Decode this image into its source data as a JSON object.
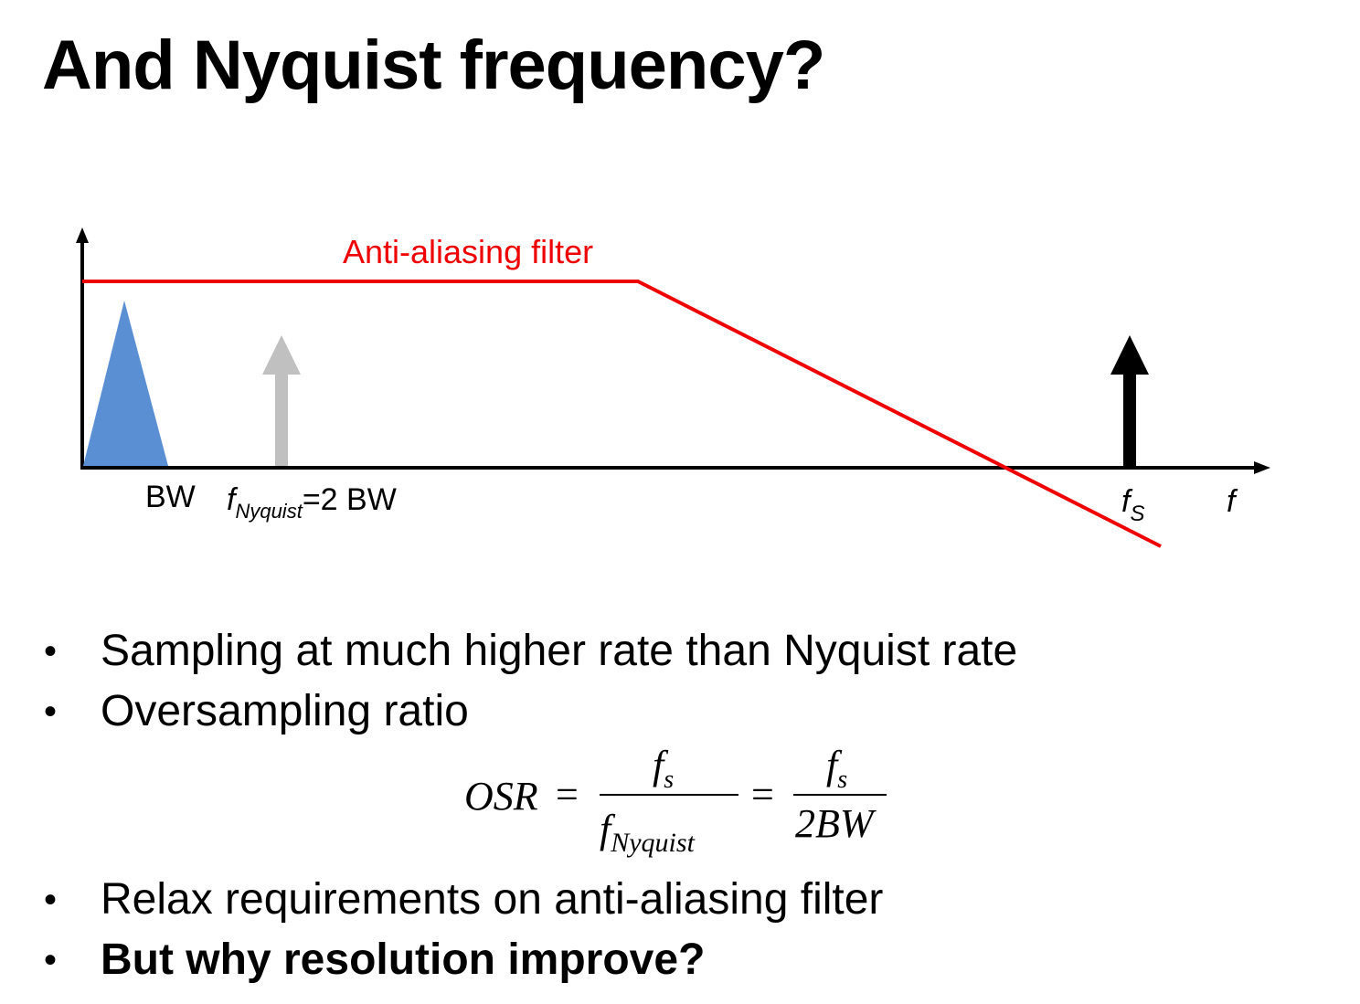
{
  "title": "And Nyquist frequency?",
  "diagram": {
    "filter_label": "Anti-aliasing filter",
    "bw_label": "BW",
    "nyquist_label_f": "f",
    "nyquist_label_sub": "Nyquist",
    "nyquist_label_rest": "=2 BW",
    "fs_label_f": "f",
    "fs_label_sub": "S",
    "axis_label": "f",
    "colors": {
      "filter": "#ee0000",
      "signal": "#5b8fd4",
      "nyquist_arrow": "#c0c0c0",
      "fs_arrow": "#000000"
    }
  },
  "bullets": [
    "Sampling at much higher rate than Nyquist rate",
    "Oversampling ratio",
    "Relax requirements on anti-aliasing filter",
    "But why resolution improve?"
  ],
  "formula": {
    "lhs": "OSR",
    "eq1": "=",
    "num1_f": "f",
    "num1_sub": "s",
    "den1_f": "f",
    "den1_sub": "Nyquist",
    "eq2": "=",
    "num2_f": "f",
    "num2_sub": "s",
    "den2": "2BW"
  }
}
